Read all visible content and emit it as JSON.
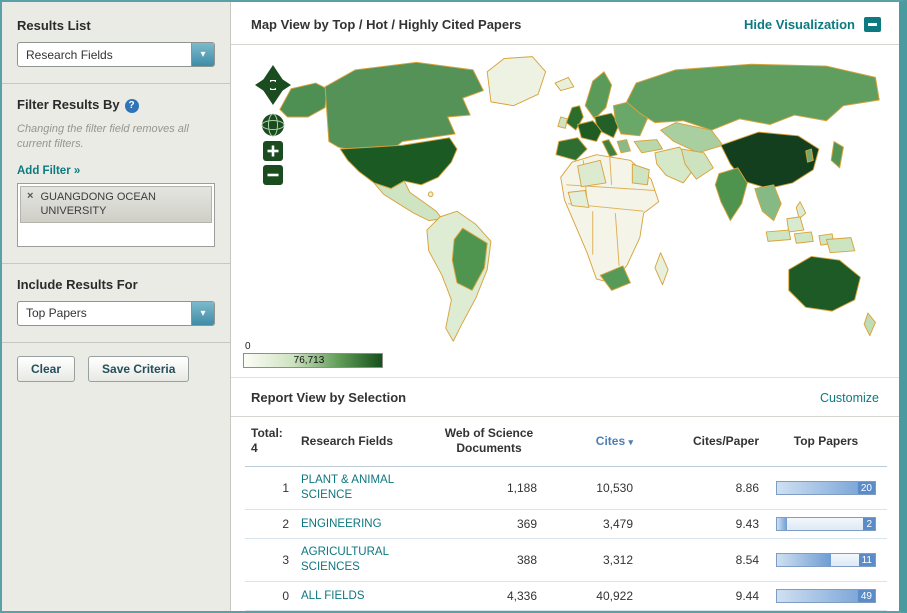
{
  "sidebar": {
    "results_list": {
      "label": "Results List",
      "selected": "Research Fields"
    },
    "filter": {
      "title": "Filter Results By",
      "help": "?",
      "note": "Changing the filter field removes all current filters.",
      "add_filter": "Add Filter »",
      "active_filters": [
        {
          "remove": "×",
          "label": "GUANGDONG OCEAN UNIVERSITY"
        }
      ]
    },
    "include_results": {
      "label": "Include Results For",
      "selected": "Top Papers"
    },
    "buttons": {
      "clear": "Clear",
      "save": "Save Criteria"
    }
  },
  "map_panel": {
    "title": "Map View by Top / Hot / Highly Cited Papers",
    "hide_label": "Hide Visualization",
    "controls": {
      "zoom_in": "+",
      "zoom_out": "−"
    },
    "legend": {
      "min": "0",
      "max": "76,713"
    }
  },
  "report": {
    "title": "Report View by Selection",
    "customize_label": "Customize",
    "header": {
      "total_label": "Total:",
      "total_value": "4",
      "fields": "Research Fields",
      "docs": "Web of Science Documents",
      "cites": "Cites",
      "sort_arrow": "▾",
      "cites_per_paper": "Cites/Paper",
      "top_papers": "Top Papers"
    },
    "rows": [
      {
        "rank": "1",
        "name": "PLANT & ANIMAL SCIENCE",
        "docs": "1,188",
        "cites": "10,530",
        "cites_per_paper": "8.86",
        "top_papers": "20",
        "bar_percent": 100
      },
      {
        "rank": "2",
        "name": "ENGINEERING",
        "docs": "369",
        "cites": "3,479",
        "cites_per_paper": "9.43",
        "top_papers": "2",
        "bar_percent": 10
      },
      {
        "rank": "3",
        "name": "AGRICULTURAL SCIENCES",
        "docs": "388",
        "cites": "3,312",
        "cites_per_paper": "8.54",
        "top_papers": "11",
        "bar_percent": 55
      },
      {
        "rank": "0",
        "name": "ALL FIELDS",
        "docs": "4,336",
        "cites": "40,922",
        "cites_per_paper": "9.44",
        "top_papers": "49",
        "bar_percent": 100
      }
    ]
  },
  "colors": {
    "accent_teal": "#0c7a80",
    "map_dark_green": "#17501c",
    "map_border_orange": "#d9a33b",
    "bar_blue": "#5c8cc8"
  },
  "chart_data": [
    {
      "type": "heatmap",
      "title": "World choropleth of top / hot / highly cited papers",
      "legend_range": [
        0,
        76713
      ]
    },
    {
      "type": "bar",
      "title": "Top Papers",
      "categories": [
        "PLANT & ANIMAL SCIENCE",
        "ENGINEERING",
        "AGRICULTURAL SCIENCES",
        "ALL FIELDS"
      ],
      "values": [
        20,
        2,
        11,
        49
      ]
    }
  ]
}
